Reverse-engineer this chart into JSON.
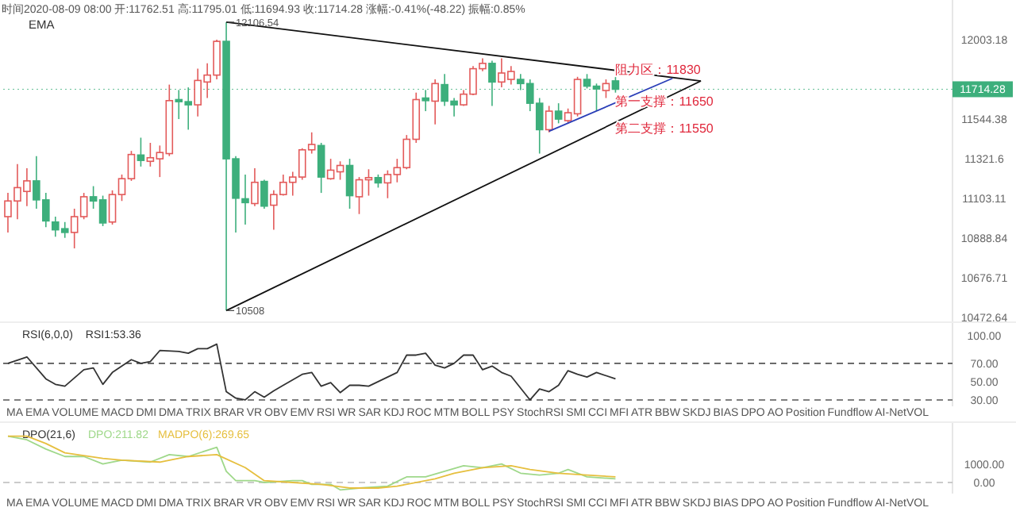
{
  "chart_data": [
    {
      "type": "candlestick",
      "title": "时间2020-08-09 08:00 开:11762.51 高:11795.01 低:11694.93 收:11714.28 涨幅:-0.41%(-48.22) 振幅:0.85%",
      "subtitle": "EMA",
      "log": true,
      "tick_labels": "y",
      "categories": [
        null,
        null,
        null,
        null,
        null,
        null,
        null,
        null,
        null,
        null,
        null,
        null,
        null,
        null,
        null,
        null,
        null,
        null,
        null,
        null,
        null,
        null,
        null,
        null,
        null,
        null,
        null,
        null,
        null,
        null,
        null,
        null,
        null,
        null,
        null,
        null,
        null,
        null,
        null,
        null,
        null,
        null,
        null,
        null,
        null,
        null,
        null,
        null,
        null,
        null,
        null,
        null,
        null,
        null,
        null,
        null,
        null,
        null,
        null,
        null,
        null,
        null,
        null,
        null,
        null,
        null,
        null,
        null,
        null,
        null,
        null,
        null,
        null,
        null,
        null,
        null,
        null,
        null,
        null,
        null,
        null,
        null,
        null,
        null,
        null,
        null,
        null,
        null,
        null,
        null,
        null,
        null,
        null,
        null,
        null,
        null,
        null,
        null,
        null,
        null
      ],
      "ylim": [
        10432,
        12239
      ],
      "yticks": [
        12003.18,
        11544.38,
        11321.6,
        11103.11,
        10888.84,
        10676.71,
        10472.64
      ],
      "ohlc": [
        [
          11004,
          11133,
          10919,
          11089
        ],
        [
          11089,
          11292,
          10990,
          11162
        ],
        [
          11141,
          11269,
          11061,
          11199
        ],
        [
          11199,
          11336,
          11047,
          11095
        ],
        [
          11095,
          11133,
          10947,
          10981
        ],
        [
          10975,
          11004,
          10896,
          10933
        ],
        [
          10939,
          10975,
          10890,
          10919
        ],
        [
          10919,
          11047,
          10834,
          11004
        ],
        [
          11004,
          11133,
          10990,
          11112
        ],
        [
          11112,
          11170,
          11047,
          11089
        ],
        [
          11095,
          11118,
          10953,
          10970
        ],
        [
          10975,
          11147,
          10961,
          11124
        ],
        [
          11124,
          11234,
          11089,
          11211
        ],
        [
          11211,
          11365,
          11199,
          11345
        ],
        [
          11342,
          11439,
          11278,
          11312
        ],
        [
          11307,
          11410,
          11278,
          11327
        ],
        [
          11321,
          11395,
          11220,
          11356
        ],
        [
          11350,
          11741,
          11336,
          11649
        ],
        [
          11655,
          11710,
          11544,
          11643
        ],
        [
          11643,
          11725,
          11484,
          11625
        ],
        [
          11625,
          11833,
          11559,
          11765
        ],
        [
          11756,
          11864,
          11664,
          11796
        ],
        [
          11796,
          12003,
          11771,
          11993
        ],
        [
          11993,
          12106.54,
          10508,
          11321
        ],
        [
          11321,
          11336,
          10919,
          11104
        ],
        [
          11101,
          11234,
          10961,
          11080
        ],
        [
          11075,
          11269,
          11061,
          11191
        ],
        [
          11196,
          11205,
          11047,
          11061
        ],
        [
          11066,
          11147,
          10933,
          11124
        ],
        [
          11124,
          11234,
          11118,
          11191
        ],
        [
          11191,
          11249,
          11118,
          11220
        ],
        [
          11220,
          11380,
          11205,
          11371
        ],
        [
          11371,
          11469,
          11350,
          11401
        ],
        [
          11395,
          11410,
          11133,
          11220
        ],
        [
          11211,
          11321,
          11205,
          11258
        ],
        [
          11249,
          11307,
          11205,
          11284
        ],
        [
          11284,
          11321,
          11047,
          11118
        ],
        [
          11112,
          11220,
          11018,
          11205
        ],
        [
          11205,
          11263,
          11118,
          11217
        ],
        [
          11217,
          11234,
          11162,
          11188
        ],
        [
          11188,
          11257,
          11104,
          11234
        ],
        [
          11234,
          11321,
          11191,
          11272
        ],
        [
          11272,
          11454,
          11263,
          11430
        ],
        [
          11430,
          11695,
          11410,
          11655
        ],
        [
          11664,
          11710,
          11589,
          11649
        ],
        [
          11646,
          11771,
          11514,
          11747
        ],
        [
          11741,
          11802,
          11619,
          11646
        ],
        [
          11646,
          11664,
          11559,
          11625
        ],
        [
          11625,
          11710,
          11619,
          11686
        ],
        [
          11686,
          11848,
          11680,
          11833
        ],
        [
          11833,
          11894,
          11818,
          11864
        ],
        [
          11864,
          11879,
          11619,
          11756
        ],
        [
          11756,
          11894,
          11725,
          11808
        ],
        [
          11771,
          11848,
          11741,
          11817
        ],
        [
          11771,
          11802,
          11710,
          11747
        ],
        [
          11747,
          11771,
          11589,
          11634
        ],
        [
          11634,
          11664,
          11350,
          11484
        ],
        [
          11484,
          11619,
          11469,
          11589
        ],
        [
          11589,
          11634,
          11520,
          11544
        ],
        [
          11535,
          11604,
          11520,
          11580
        ],
        [
          11574,
          11786,
          11559,
          11771
        ],
        [
          11771,
          11802,
          11719,
          11732
        ],
        [
          11732,
          11747,
          11589,
          11716
        ],
        [
          11707,
          11771,
          11664,
          11747
        ],
        [
          11762.51,
          11795.01,
          11694.93,
          11714.28
        ],
        null,
        null,
        null,
        null,
        null,
        null,
        null,
        null,
        null,
        null,
        null,
        null,
        null,
        null,
        null,
        null,
        null,
        null,
        null,
        null,
        null,
        null,
        null,
        null,
        null,
        null,
        null,
        null,
        null,
        null,
        null,
        null,
        null,
        null,
        null
      ],
      "series": [
        {
          "type": "line",
          "color": "#111111",
          "values": [
            null,
            null,
            null,
            null,
            null,
            null,
            null,
            null,
            null,
            null,
            null,
            null,
            null,
            null,
            null,
            null,
            null,
            null,
            null,
            null,
            null,
            null,
            null,
            12106.54,
            null,
            null,
            null,
            null,
            null,
            null,
            null,
            null,
            null,
            null,
            null,
            null,
            null,
            null,
            null,
            null,
            null,
            null,
            null,
            null,
            null,
            null,
            null,
            null,
            null,
            null,
            null,
            null,
            null,
            null,
            null,
            null,
            null,
            null,
            null,
            null,
            null,
            null,
            null,
            null,
            null,
            null,
            null,
            null,
            null,
            null,
            null,
            null,
            null,
            11762,
            null,
            null,
            null,
            null,
            null,
            null,
            null,
            null,
            null,
            null,
            null,
            null,
            null,
            null,
            null,
            null,
            null,
            null,
            null,
            null,
            null,
            null,
            null,
            null,
            null,
            null
          ]
        },
        {
          "type": "line",
          "color": "#111111",
          "values": [
            null,
            null,
            null,
            null,
            null,
            null,
            null,
            null,
            null,
            null,
            null,
            null,
            null,
            null,
            null,
            null,
            null,
            null,
            null,
            null,
            null,
            null,
            null,
            10508,
            null,
            null,
            null,
            null,
            null,
            null,
            null,
            null,
            null,
            null,
            null,
            null,
            null,
            null,
            null,
            null,
            null,
            null,
            null,
            null,
            null,
            null,
            null,
            null,
            null,
            null,
            null,
            null,
            null,
            null,
            null,
            null,
            null,
            null,
            null,
            null,
            null,
            null,
            null,
            null,
            null,
            null,
            null,
            null,
            null,
            null,
            null,
            null,
            null,
            11762,
            null,
            null,
            null,
            null,
            null,
            null,
            null,
            null,
            null,
            null,
            null,
            null,
            null,
            null,
            null,
            null,
            null,
            null,
            null,
            null,
            null,
            null,
            null,
            null,
            null,
            null
          ]
        },
        {
          "type": "line",
          "color": "#2b3fb8",
          "values": [
            null,
            null,
            null,
            null,
            null,
            null,
            null,
            null,
            null,
            null,
            null,
            null,
            null,
            null,
            null,
            null,
            null,
            null,
            null,
            null,
            null,
            null,
            null,
            null,
            null,
            null,
            null,
            null,
            null,
            null,
            null,
            null,
            null,
            null,
            null,
            null,
            null,
            null,
            null,
            null,
            null,
            null,
            null,
            null,
            null,
            null,
            null,
            null,
            null,
            null,
            null,
            null,
            null,
            null,
            null,
            null,
            null,
            11475,
            null,
            null,
            null,
            null,
            null,
            null,
            null,
            null,
            null,
            null,
            null,
            null,
            11777,
            null,
            null,
            null,
            null,
            null,
            null,
            null,
            null,
            null,
            null,
            null,
            null,
            null,
            null,
            null,
            null,
            null,
            null,
            null,
            null,
            null,
            null,
            null,
            null,
            null,
            null,
            null,
            null,
            null
          ]
        }
      ],
      "ref_lines": [
        {
          "axis": "y",
          "value": 11714.28,
          "label": "11714.28",
          "color": "#3daf7c",
          "line_style": "dotted"
        }
      ],
      "annotations": [
        {
          "text": "12106.54",
          "y": 12106.54
        },
        "10508",
        {
          "text": "阻力区：11830",
          "y": 11830
        },
        {
          "text": "第一支撑：11650",
          "y": 11650
        },
        "第二支撑：11550"
      ]
    },
    {
      "type": "line",
      "title": "RSI(6,0,0)",
      "tick_labels": "y",
      "legend": "top left",
      "categories": [
        null,
        null,
        null,
        null,
        null,
        null,
        null,
        null,
        null,
        null,
        null,
        null,
        null,
        null,
        null,
        null,
        null,
        null,
        null,
        null,
        null,
        null,
        null,
        null,
        null,
        null,
        null,
        null,
        null,
        null,
        null,
        null,
        null,
        null,
        null,
        null,
        null,
        null,
        null,
        null,
        null,
        null,
        null,
        null,
        null,
        null,
        null,
        null,
        null,
        null,
        null,
        null,
        null,
        null,
        null,
        null,
        null,
        null,
        null,
        null,
        null,
        null,
        null,
        null,
        null,
        null,
        null,
        null,
        null,
        null,
        null,
        null,
        null,
        null,
        null,
        null,
        null,
        null,
        null,
        null,
        null,
        null,
        null,
        null,
        null,
        null,
        null,
        null,
        null,
        null,
        null,
        null,
        null,
        null,
        null,
        null,
        null,
        null,
        null,
        null
      ],
      "ylim": [
        23,
        115
      ],
      "yticks": [
        {
          "value": 100,
          "label": "100.00"
        },
        {
          "value": 70,
          "label": "70.00"
        },
        {
          "value": 50,
          "label": "50.00"
        },
        {
          "value": 30,
          "label": "30.00"
        }
      ],
      "series": [
        {
          "name": "RSI1:53.36",
          "color": "#333333",
          "values": [
            70,
            null,
            77,
            null,
            53,
            47,
            45,
            null,
            63,
            65,
            47,
            60,
            null,
            74,
            70,
            72,
            84,
            null,
            83,
            81,
            86,
            86,
            91,
            39,
            32,
            30,
            39,
            33,
            40,
            46,
            null,
            58,
            60,
            45,
            49,
            38,
            46,
            46,
            45,
            null,
            55,
            60,
            79,
            79,
            81,
            68,
            65,
            70,
            79,
            79,
            63,
            67,
            60,
            56,
            null,
            30,
            42,
            39,
            46,
            62,
            58,
            55,
            60,
            null,
            53,
            null,
            null,
            null,
            null,
            null,
            null,
            null,
            null,
            null,
            null,
            null,
            null,
            null,
            null,
            null,
            null,
            null,
            null,
            null,
            null,
            null,
            null,
            null,
            null,
            null,
            null,
            null,
            null,
            null,
            null,
            null,
            null,
            null,
            null,
            null
          ]
        }
      ],
      "ref_lines": [
        {
          "axis": "y",
          "value": 70,
          "color": "#555555",
          "line_style": "dashed"
        },
        {
          "axis": "y",
          "value": 30,
          "color": "#555555",
          "line_style": "dashed"
        }
      ],
      "annotations": [
        "MA",
        "EMA",
        "VOLUME",
        "MACD",
        "DMI",
        "DMA",
        "TRIX",
        "BRAR",
        "VR",
        "OBV",
        "EMV",
        "RSI",
        "WR",
        "SAR",
        "KDJ",
        "ROC",
        "MTM",
        "BOLL",
        "PSY",
        "StochRSI",
        "SMI",
        "CCI",
        "MFI",
        "ATR",
        "BBW",
        "SKDJ",
        "BIAS",
        "DPO",
        "AO",
        "Position",
        "Fundflow",
        "AI-NetVOL"
      ]
    },
    {
      "type": "line",
      "title": "DPO(21,6)",
      "tick_labels": "y",
      "legend": "top left",
      "categories": [
        null,
        null,
        null,
        null,
        null,
        null,
        null,
        null,
        null,
        null,
        null,
        null,
        null,
        null,
        null,
        null,
        null,
        null,
        null,
        null,
        null,
        null,
        null,
        null,
        null,
        null,
        null,
        null,
        null,
        null,
        null,
        null,
        null,
        null,
        null,
        null,
        null,
        null,
        null,
        null,
        null,
        null,
        null,
        null,
        null,
        null,
        null,
        null,
        null,
        null,
        null,
        null,
        null,
        null,
        null,
        null,
        null,
        null,
        null,
        null,
        null,
        null,
        null,
        null,
        null,
        null,
        null,
        null,
        null,
        null,
        null,
        null,
        null,
        null,
        null,
        null,
        null,
        null,
        null,
        null,
        null,
        null,
        null,
        null,
        null,
        null,
        null,
        null,
        null,
        null,
        null,
        null,
        null,
        null,
        null,
        null,
        null,
        null,
        null,
        null
      ],
      "ylim": [
        -600,
        3250
      ],
      "yticks": [
        {
          "value": 1000,
          "label": "1000.00"
        },
        {
          "value": 0,
          "label": "0.00"
        }
      ],
      "series": [
        {
          "name": "DPO:211.82",
          "color": "#9fd88a",
          "values": [
            2500,
            null,
            2300,
            null,
            1800,
            null,
            1400,
            null,
            1400,
            null,
            1000,
            null,
            1200,
            null,
            null,
            1100,
            null,
            1500,
            null,
            1400,
            null,
            null,
            1900,
            600,
            100,
            null,
            100,
            0,
            null,
            null,
            100,
            100,
            -100,
            null,
            -100,
            -400,
            null,
            -300,
            null,
            null,
            -200,
            null,
            300,
            null,
            300,
            null,
            600,
            null,
            900,
            null,
            800,
            null,
            1000,
            null,
            500,
            null,
            400,
            null,
            500,
            700,
            null,
            300,
            null,
            null,
            200,
            null,
            null,
            null,
            null,
            null,
            null,
            null,
            null,
            null,
            null,
            null,
            null,
            null,
            null,
            null,
            null,
            null,
            null,
            null,
            null,
            null,
            null,
            null,
            null,
            null,
            null,
            null,
            null,
            null,
            null,
            null,
            null,
            null,
            null,
            null
          ]
        },
        {
          "name": "MADPO(6):269.65",
          "color": "#e6bf3e",
          "values": [
            2500,
            null,
            2500,
            null,
            2100,
            null,
            1600,
            null,
            null,
            null,
            1300,
            null,
            1200,
            null,
            null,
            null,
            1100,
            null,
            null,
            1400,
            null,
            null,
            1500,
            null,
            null,
            800,
            null,
            100,
            null,
            null,
            0,
            null,
            null,
            -100,
            null,
            null,
            -300,
            null,
            null,
            -300,
            null,
            -200,
            null,
            null,
            null,
            200,
            null,
            500,
            null,
            null,
            800,
            null,
            null,
            900,
            null,
            700,
            null,
            null,
            500,
            null,
            null,
            400,
            null,
            null,
            300,
            null,
            null,
            null,
            null,
            null,
            null,
            null,
            null,
            null,
            null,
            null,
            null,
            null,
            null,
            null,
            null,
            null,
            null,
            null,
            null,
            null,
            null,
            null,
            null,
            null,
            null,
            null,
            null,
            null,
            null,
            null,
            null,
            null,
            null,
            null
          ]
        }
      ],
      "ref_lines": [
        {
          "axis": "y",
          "value": 0,
          "color": "#bbbbbb",
          "line_style": "dashed"
        }
      ],
      "annotations": [
        "MA",
        "EMA",
        "VOLUME",
        "MACD",
        "DMI",
        "DMA",
        "TRIX",
        "BRAR",
        "VR",
        "OBV",
        "EMV",
        "RSI",
        "WR",
        "SAR",
        "KDJ",
        "ROC",
        "MTM",
        "BOLL",
        "PSY",
        "StochRSI",
        "SMI",
        "CCI",
        "MFI",
        "ATR",
        "BBW",
        "SKDJ",
        "BIAS",
        "DPO",
        "AO",
        "Position",
        "Fundflow",
        "AI-NetVOL"
      ]
    }
  ]
}
